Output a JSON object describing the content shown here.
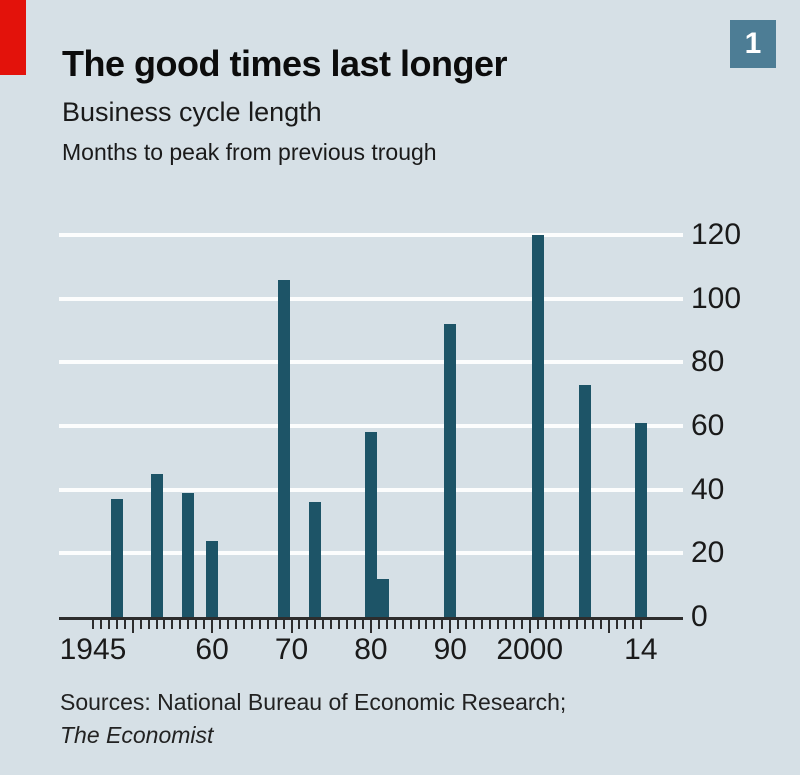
{
  "page": {
    "background_color": "#d6e0e6"
  },
  "header": {
    "red_tab_color": "#e3120b",
    "figure_number": "1",
    "figure_badge_color": "#4d7d95",
    "title": "The good times last longer",
    "subtitle": "Business cycle length",
    "unit_note": "Months to peak from previous trough"
  },
  "footer": {
    "sources_line": "Sources: National Bureau of Economic Research;",
    "sources_italic_line": "The Economist"
  },
  "chart_data": {
    "type": "bar",
    "title": "The good times last longer",
    "subtitle": "Business cycle length",
    "ylabel": "Months to peak from previous trough",
    "bar_color": "#1d5467",
    "gridline_color": "#fcfdfd",
    "axis_color": "#2d2d2d",
    "grid": "horizontal-only",
    "legend": "none",
    "y_axis_side": "right",
    "x": [
      1948,
      1953,
      1957,
      1960,
      1969,
      1973,
      1980,
      1981.5,
      1990,
      2001,
      2007,
      2014
    ],
    "values": [
      37,
      45,
      39,
      24,
      106,
      36,
      58,
      12,
      92,
      120,
      73,
      61
    ],
    "ylim": [
      0,
      120
    ],
    "yticks": [
      0,
      20,
      40,
      60,
      80,
      100,
      120
    ],
    "xtick_minor_range": [
      1945,
      2014
    ],
    "xtick_minor_step": 1,
    "xtick_major_years": [
      1950,
      1960,
      1970,
      1980,
      1990,
      2000,
      2010
    ],
    "xtick_labels": [
      {
        "year": 1945,
        "label": "1945"
      },
      {
        "year": 1960,
        "label": "60"
      },
      {
        "year": 1970,
        "label": "70"
      },
      {
        "year": 1980,
        "label": "80"
      },
      {
        "year": 1990,
        "label": "90"
      },
      {
        "year": 2000,
        "label": "2000"
      },
      {
        "year": 2014,
        "label": "14"
      }
    ]
  }
}
